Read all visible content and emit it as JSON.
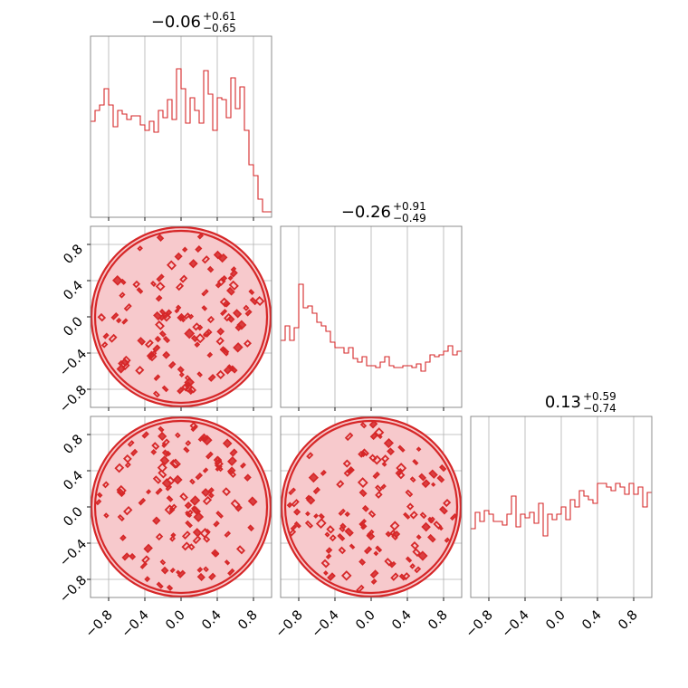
{
  "chart_data": {
    "type": "corner",
    "color": "#d62728",
    "grid": true,
    "xlim": [
      -1.0,
      1.0
    ],
    "ylim": [
      -1.0,
      1.0
    ],
    "ticks": [
      -0.8,
      -0.4,
      0.0,
      0.4,
      0.8
    ],
    "tick_labels": [
      "−0.8",
      "−0.4",
      "0.0",
      "0.4",
      "0.8"
    ],
    "parameters": [
      {
        "title_main": "−0.06",
        "title_plus": "+0.61",
        "title_minus": "−0.65",
        "histogram": [
          0.53,
          0.59,
          0.62,
          0.71,
          0.62,
          0.5,
          0.59,
          0.57,
          0.54,
          0.56,
          0.56,
          0.51,
          0.48,
          0.53,
          0.47,
          0.59,
          0.55,
          0.65,
          0.54,
          0.82,
          0.71,
          0.52,
          0.66,
          0.59,
          0.52,
          0.81,
          0.68,
          0.48,
          0.66,
          0.65,
          0.55,
          0.77,
          0.6,
          0.72,
          0.48,
          0.29,
          0.23,
          0.1,
          0.03,
          0.03
        ]
      },
      {
        "title_main": "−0.26",
        "title_plus": "+0.91",
        "title_minus": "−0.49",
        "histogram": [
          0.37,
          0.45,
          0.37,
          0.44,
          0.68,
          0.55,
          0.56,
          0.52,
          0.47,
          0.45,
          0.42,
          0.36,
          0.33,
          0.33,
          0.3,
          0.33,
          0.27,
          0.25,
          0.28,
          0.23,
          0.23,
          0.22,
          0.25,
          0.28,
          0.23,
          0.22,
          0.22,
          0.23,
          0.23,
          0.22,
          0.24,
          0.2,
          0.25,
          0.29,
          0.28,
          0.29,
          0.31,
          0.34,
          0.29,
          0.31
        ]
      },
      {
        "title_main": "0.13",
        "title_plus": "+0.59",
        "title_minus": "−0.74",
        "histogram": [
          0.38,
          0.47,
          0.42,
          0.48,
          0.46,
          0.42,
          0.42,
          0.4,
          0.46,
          0.56,
          0.39,
          0.46,
          0.44,
          0.47,
          0.41,
          0.52,
          0.34,
          0.46,
          0.43,
          0.46,
          0.5,
          0.43,
          0.54,
          0.5,
          0.59,
          0.56,
          0.54,
          0.52,
          0.63,
          0.63,
          0.61,
          0.59,
          0.63,
          0.61,
          0.57,
          0.63,
          0.57,
          0.61,
          0.5,
          0.58
        ]
      }
    ]
  }
}
